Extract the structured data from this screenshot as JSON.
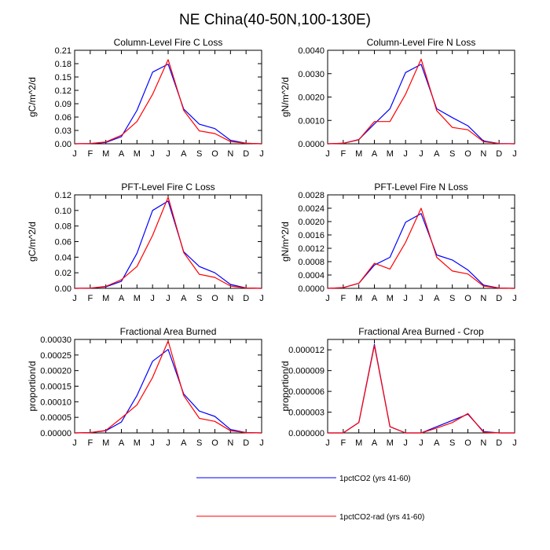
{
  "figure_title": "NE China(40-50N,100-130E)",
  "legend": {
    "entries": [
      {
        "label": "1pctCO2 (yrs 41-60)",
        "color": "#0000ff"
      },
      {
        "label": "1pctCO2-rad (yrs 41-60)",
        "color": "#ff0000"
      }
    ]
  },
  "chart_data": [
    {
      "type": "line",
      "title": "Column-Level Fire C Loss",
      "ylabel": "gC/m^2/d",
      "x": [
        "J",
        "F",
        "M",
        "A",
        "M",
        "J",
        "J",
        "A",
        "S",
        "O",
        "N",
        "D",
        "J"
      ],
      "ylim": [
        0,
        0.21
      ],
      "yticks": [
        "0.00",
        "0.03",
        "0.06",
        "0.09",
        "0.12",
        "0.15",
        "0.18",
        "0.21"
      ],
      "series": [
        {
          "name": "1pctCO2 (yrs 41-60)",
          "color": "#0000ff",
          "values": [
            0.0,
            0.0005,
            0.003,
            0.016,
            0.075,
            0.161,
            0.179,
            0.078,
            0.044,
            0.034,
            0.008,
            0.001,
            0.0
          ]
        },
        {
          "name": "1pctCO2-rad (yrs 41-60)",
          "color": "#ff0000",
          "values": [
            0.0,
            0.0005,
            0.004,
            0.019,
            0.05,
            0.111,
            0.189,
            0.075,
            0.029,
            0.023,
            0.005,
            0.001,
            0.0
          ]
        }
      ]
    },
    {
      "type": "line",
      "title": "Column-Level Fire N Loss",
      "ylabel": "gN/m^2/d",
      "x": [
        "J",
        "F",
        "M",
        "A",
        "M",
        "J",
        "J",
        "A",
        "S",
        "O",
        "N",
        "D",
        "J"
      ],
      "ylim": [
        0,
        0.004
      ],
      "yticks": [
        "0.0000",
        "0.0010",
        "0.0020",
        "0.0030",
        "0.0040"
      ],
      "series": [
        {
          "name": "1pctCO2 (yrs 41-60)",
          "color": "#0000ff",
          "values": [
            0.0,
            2e-05,
            0.00018,
            0.00085,
            0.0015,
            0.00305,
            0.0034,
            0.0015,
            0.00112,
            0.00077,
            0.00012,
            1e-05,
            0.0
          ]
        },
        {
          "name": "1pctCO2-rad (yrs 41-60)",
          "color": "#ff0000",
          "values": [
            0.0,
            2e-05,
            0.00017,
            0.00095,
            0.00095,
            0.00212,
            0.00362,
            0.00142,
            0.0007,
            0.0006,
            9e-05,
            1e-05,
            0.0
          ]
        }
      ]
    },
    {
      "type": "line",
      "title": "PFT-Level Fire C Loss",
      "ylabel": "gC/m^2/d",
      "x": [
        "J",
        "F",
        "M",
        "A",
        "M",
        "J",
        "J",
        "A",
        "S",
        "O",
        "N",
        "D",
        "J"
      ],
      "ylim": [
        0,
        0.12
      ],
      "yticks": [
        "0.00",
        "0.02",
        "0.04",
        "0.06",
        "0.08",
        "0.10",
        "0.12"
      ],
      "series": [
        {
          "name": "1pctCO2 (yrs 41-60)",
          "color": "#0000ff",
          "values": [
            0.0,
            0.0003,
            0.002,
            0.009,
            0.045,
            0.1,
            0.112,
            0.047,
            0.028,
            0.02,
            0.005,
            0.0005,
            0.0
          ]
        },
        {
          "name": "1pctCO2-rad (yrs 41-60)",
          "color": "#ff0000",
          "values": [
            0.0,
            0.0003,
            0.0025,
            0.011,
            0.028,
            0.068,
            0.117,
            0.046,
            0.018,
            0.014,
            0.003,
            0.0005,
            0.0
          ]
        }
      ]
    },
    {
      "type": "line",
      "title": "PFT-Level Fire N Loss",
      "ylabel": "gN/m^2/d",
      "x": [
        "J",
        "F",
        "M",
        "A",
        "M",
        "J",
        "J",
        "A",
        "S",
        "O",
        "N",
        "D",
        "J"
      ],
      "ylim": [
        0,
        0.0028
      ],
      "yticks": [
        "0.0000",
        "0.0004",
        "0.0008",
        "0.0012",
        "0.0016",
        "0.0020",
        "0.0024",
        "0.0028"
      ],
      "series": [
        {
          "name": "1pctCO2 (yrs 41-60)",
          "color": "#0000ff",
          "values": [
            0.0,
            2e-05,
            0.00015,
            0.0007,
            0.00093,
            0.00198,
            0.00224,
            0.001,
            0.00085,
            0.00055,
            0.0001,
            1e-05,
            0.0
          ]
        },
        {
          "name": "1pctCO2-rad (yrs 41-60)",
          "color": "#ff0000",
          "values": [
            0.0,
            2e-05,
            0.00015,
            0.00075,
            0.00058,
            0.00138,
            0.0024,
            0.00093,
            0.00052,
            0.00043,
            7e-05,
            1e-05,
            0.0
          ]
        }
      ]
    },
    {
      "type": "line",
      "title": "Fractional Area Burned",
      "ylabel": "proportion/d",
      "x": [
        "J",
        "F",
        "M",
        "A",
        "M",
        "J",
        "J",
        "A",
        "S",
        "O",
        "N",
        "D",
        "J"
      ],
      "ylim": [
        0,
        0.0003
      ],
      "yticks": [
        "0.00000",
        "0.00005",
        "0.00010",
        "0.00015",
        "0.00020",
        "0.00025",
        "0.00030"
      ],
      "series": [
        {
          "name": "1pctCO2 (yrs 41-60)",
          "color": "#0000ff",
          "values": [
            0.0,
            1e-06,
            7e-06,
            3.5e-05,
            0.00012,
            0.00023,
            0.000268,
            0.000125,
            7e-05,
            5.3e-05,
            1.1e-05,
            1e-06,
            0.0
          ]
        },
        {
          "name": "1pctCO2-rad (yrs 41-60)",
          "color": "#ff0000",
          "values": [
            0.0,
            1e-06,
            8e-06,
            4.8e-05,
            9e-05,
            0.000178,
            0.000295,
            0.00012,
            4.7e-05,
            3.7e-05,
            7e-06,
            1e-06,
            0.0
          ]
        }
      ]
    },
    {
      "type": "line",
      "title": "Fractional Area Burned - Crop",
      "ylabel": "proportion/d",
      "x": [
        "J",
        "F",
        "M",
        "A",
        "M",
        "J",
        "J",
        "A",
        "S",
        "O",
        "N",
        "D",
        "J"
      ],
      "ylim": [
        0,
        1.35e-05
      ],
      "yticks": [
        "0.000000",
        "0.000003",
        "0.000006",
        "0.000009",
        "0.000012"
      ],
      "series": [
        {
          "name": "1pctCO2 (yrs 41-60)",
          "color": "#0000ff",
          "values": [
            0.0,
            0.0,
            1.5e-06,
            1.28e-05,
            9e-07,
            0.0,
            0.0,
            9e-07,
            1.8e-06,
            2.7e-06,
            2e-07,
            0.0,
            0.0
          ]
        },
        {
          "name": "1pctCO2-rad (yrs 41-60)",
          "color": "#ff0000",
          "values": [
            0.0,
            0.0,
            1.5e-06,
            1.26e-05,
            9e-07,
            0.0,
            0.0,
            7e-07,
            1.5e-06,
            2.8e-06,
            1e-07,
            0.0,
            0.0
          ]
        }
      ]
    }
  ]
}
